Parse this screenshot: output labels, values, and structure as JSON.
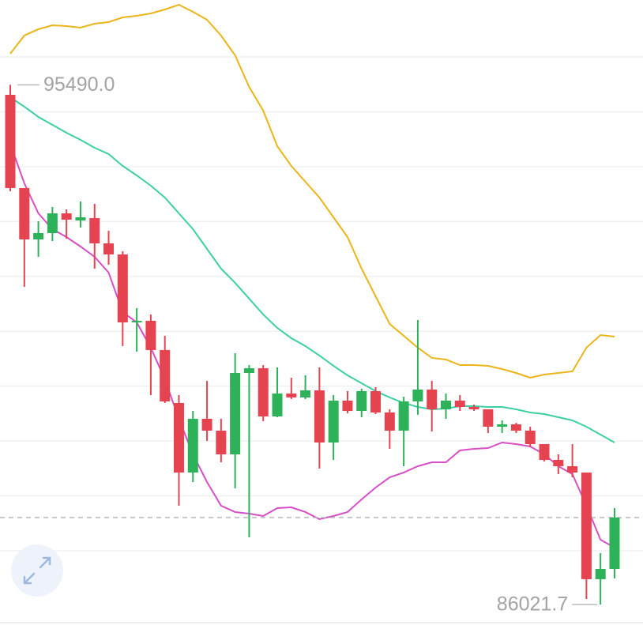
{
  "chart_data": {
    "type": "candlestick",
    "ylim": [
      85574.4,
      97036.8
    ],
    "yticks": [
      87000,
      88000,
      89000,
      90000,
      91000,
      92000,
      93000,
      94000,
      95000,
      96000
    ],
    "grid": true,
    "up_color": "#2db25a",
    "down_color": "#e5434f",
    "open": [
      95309,
      93610,
      92674,
      92789,
      93149,
      93019,
      93062,
      92602,
      92400,
      91162,
      91190,
      90658,
      89693,
      88426,
      89405,
      89189,
      88757,
      90240,
      90326,
      89448,
      89866,
      89794,
      89923,
      88973,
      89736,
      89549,
      89909,
      89520,
      89189,
      89722,
      89938,
      89578,
      89736,
      89621,
      89578,
      89261,
      89304,
      89189,
      88944,
      88656,
      88541,
      88426,
      86482,
      86669
    ],
    "high": [
      95490,
      93610,
      93005,
      93264,
      93221,
      93365,
      93322,
      92832,
      92458,
      91421,
      91306,
      90917,
      89837,
      89549,
      90096,
      89405,
      90600,
      90384,
      90384,
      90341,
      90154,
      90197,
      90341,
      89837,
      89909,
      89952,
      89981,
      89578,
      89808,
      91205,
      90096,
      89866,
      89837,
      89664,
      89578,
      89376,
      89333,
      89261,
      88944,
      88757,
      88944,
      88426,
      86957,
      87778
    ],
    "low": [
      93552,
      91810,
      92357,
      92645,
      92688,
      92890,
      92141,
      92213,
      90730,
      90629,
      89837,
      89693,
      87821,
      88253,
      89002,
      88613,
      88138,
      87245,
      89362,
      89434,
      89765,
      89765,
      88498,
      88656,
      89506,
      89434,
      89491,
      88858,
      88541,
      89477,
      89174,
      89405,
      89549,
      89549,
      89146,
      89146,
      89146,
      88886,
      88627,
      88397,
      88339,
      86122,
      86021.7,
      86496
    ],
    "close": [
      93610,
      92674,
      92789,
      93149,
      93034,
      93077,
      92602,
      92400,
      91162,
      91190,
      90658,
      89722,
      88426,
      89405,
      89189,
      88757,
      90240,
      90326,
      89448,
      89866,
      89794,
      89923,
      88973,
      89736,
      89549,
      89909,
      89520,
      89189,
      89722,
      89938,
      89578,
      89736,
      89621,
      89578,
      89261,
      89304,
      89189,
      88944,
      88656,
      88541,
      88426,
      86482,
      86669,
      87605
    ],
    "series": [
      {
        "color": "#ecb418",
        "values": [
          96058,
          96389,
          96504,
          96576,
          96562,
          96533,
          96605,
          96634,
          96720,
          96749,
          96792,
          96864,
          96950,
          96821,
          96677,
          96389,
          96029,
          95453,
          95021,
          94373,
          94013,
          93725,
          93437,
          93077,
          92717,
          92141,
          91637,
          91133,
          90917,
          90701,
          90514,
          90485,
          90384,
          90384,
          90370,
          90312,
          90240,
          90154,
          90211,
          90240,
          90269,
          90701,
          90931,
          90902
        ]
      },
      {
        "color": "#3ccfa4",
        "values": [
          95266,
          95093,
          94906,
          94762,
          94618,
          94488,
          94344,
          94229,
          94013,
          93840,
          93653,
          93437,
          93149,
          92861,
          92501,
          92141,
          91882,
          91594,
          91306,
          91061,
          90874,
          90730,
          90557,
          90370,
          90197,
          90053,
          89909,
          89794,
          89693,
          89621,
          89578,
          89592,
          89635,
          89635,
          89621,
          89621,
          89578,
          89520,
          89491,
          89434,
          89376,
          89261,
          89117,
          88973
        ]
      },
      {
        "color": "#d64fc6",
        "values": [
          94416,
          93696,
          93149,
          92861,
          92717,
          92544,
          92357,
          92069,
          91349,
          91162,
          90701,
          90125,
          89405,
          88757,
          88253,
          87821,
          87706,
          87677,
          87634,
          87778,
          87792,
          87706,
          87576,
          87634,
          87706,
          87936,
          88152,
          88339,
          88426,
          88541,
          88613,
          88613,
          88829,
          88858,
          88872,
          88973,
          88944,
          88901,
          88757,
          88541,
          88397,
          87821,
          87202,
          87058
        ]
      }
    ],
    "annotations": [
      {
        "value": 95490,
        "label": "95490.0"
      },
      {
        "value": 86021.7,
        "label": "86021.7"
      }
    ]
  }
}
